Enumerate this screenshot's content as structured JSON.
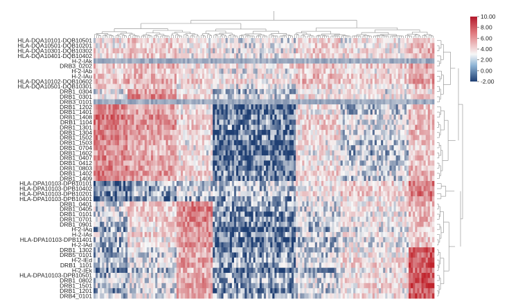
{
  "chart_data": {
    "type": "heatmap",
    "title": "",
    "xlabel": "",
    "ylabel": "",
    "rows": [
      "HLA-DQA10101-DQB10501",
      "HLA-DQA10501-DQB10201",
      "HLA-DQA10301-DQB10302",
      "HLA-DQA10401-DQB10402",
      "H-2-IAk",
      "DRB3_0202",
      "H-2-IAb",
      "H-2-IAu",
      "HLA-DQA10102-DQB10602",
      "HLA-DQA10501-DQB10301",
      "DRB1_0304",
      "DRB1_0301",
      "DRB3_0101",
      "DRB1_1202",
      "DRB1_1401",
      "DRB1_1408",
      "DRB1_1104",
      "DRB1_1301",
      "DRB1_1304",
      "DRB1_1502",
      "DRB1_1503",
      "DRB1_0704",
      "DRB1_1602",
      "DRB1_0407",
      "DRB1_0412",
      "DRB1_0803",
      "DRB1_1402",
      "DRB1_1409",
      "HLA-DPA10103-DPB10101",
      "HLA-DPA10103-DPB10402",
      "HLA-DPA10103-DPB10201",
      "HLA-DPA10103-DPB10401",
      "DRB1_0401",
      "DRB1_0405",
      "DRB1_0101",
      "DRB1_0701",
      "DRB1_0901",
      "H-2-IAq",
      "H-2-IAs",
      "HLA-DPA10103-DPB11401",
      "H-2-IAd",
      "DRB1_1302",
      "DRB5_0101",
      "H-2-IEd",
      "DRB1_1101",
      "H-2-IEk",
      "HLA-DPA10103-DPB10501",
      "DRB1_0802",
      "DRB1_1501",
      "DRB1_1201",
      "DRB4_0101"
    ],
    "colorbar": {
      "ticks": [
        10.0,
        8.0,
        6.0,
        4.0,
        2.0,
        0.0,
        -2.0
      ],
      "tick_labels": [
        "10.00",
        "8.00",
        "6.00",
        "4.00",
        "2.00",
        "0.00",
        "-2.00"
      ],
      "range": [
        -2.0,
        10.0
      ],
      "colors": {
        "low": "#1f3f73",
        "mid": "#f7f7f7",
        "high": "#c0222b"
      }
    },
    "dendrogram_top": true,
    "dendrogram_right": true,
    "columns_estimated": 160
  }
}
